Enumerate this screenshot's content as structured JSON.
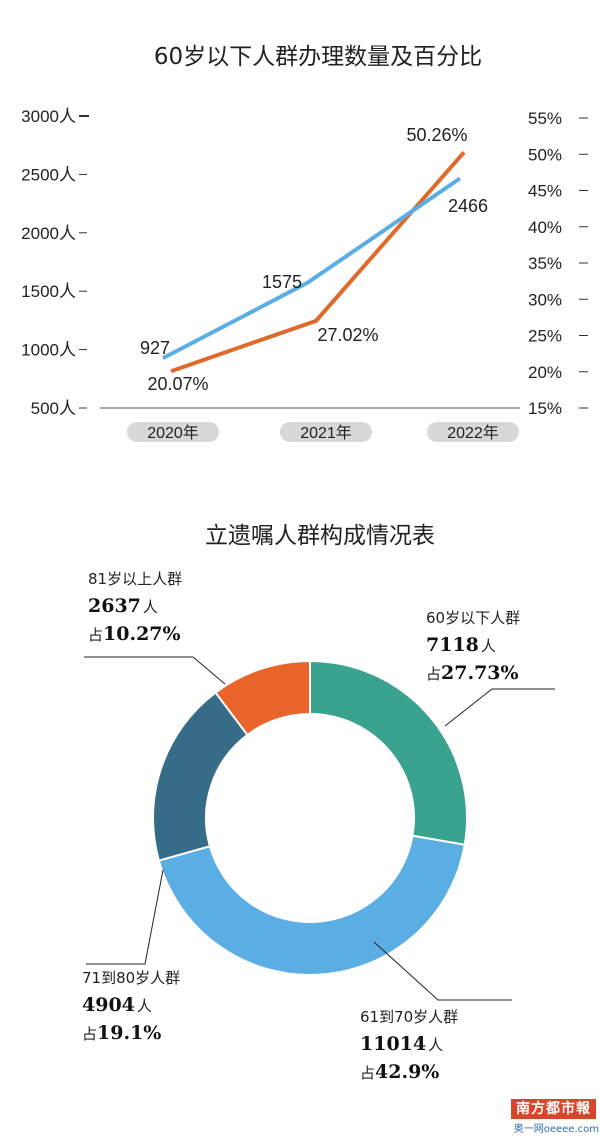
{
  "line_chart_title": "60岁以下人群办理数量及百分比",
  "pie_chart_title": "立遗嘱人群构成情况表",
  "chart_data": [
    {
      "type": "line",
      "title": "60岁以下人群办理数量及百分比",
      "categories": [
        "2020年",
        "2021年",
        "2022年"
      ],
      "y_left": {
        "ticks": [
          500,
          1000,
          1500,
          2000,
          2500,
          3000
        ],
        "tick_labels": [
          "500人",
          "1000人",
          "1500人",
          "2000人",
          "2500人",
          "3000人"
        ],
        "range": [
          500,
          3000
        ]
      },
      "y_right": {
        "ticks": [
          15,
          20,
          25,
          30,
          35,
          40,
          45,
          50,
          55
        ],
        "tick_labels": [
          "15%",
          "20%",
          "25%",
          "30%",
          "35%",
          "40%",
          "45%",
          "50%",
          "55%"
        ],
        "range": [
          15,
          55
        ]
      },
      "series": [
        {
          "axis": "left",
          "color": "#5aaee3",
          "values": [
            927,
            1575,
            2466
          ],
          "labels": [
            "927",
            "1575",
            "2466"
          ]
        },
        {
          "axis": "right",
          "color": "#e06a2c",
          "values": [
            20.07,
            27.02,
            50.26
          ],
          "labels": [
            "20.07%",
            "27.02%",
            "50.26%"
          ]
        }
      ],
      "grid": false
    },
    {
      "type": "pie",
      "title": "立遗嘱人群构成情况表",
      "style": "donut",
      "slices": [
        {
          "group": "60岁以下人群",
          "count": 7118,
          "count_text": "7118",
          "unit": "人",
          "percent": 27.73,
          "percent_text": "占27.73%",
          "color": "#3aa38f"
        },
        {
          "group": "61到70岁人群",
          "count": 11014,
          "count_text": "11014",
          "unit": "人",
          "percent": 42.9,
          "percent_text": "占42.9%",
          "color": "#5aaee3"
        },
        {
          "group": "71到80岁人群",
          "count": 4904,
          "count_text": "4904",
          "unit": "人",
          "percent": 19.1,
          "percent_text": "占19.1%",
          "color": "#376c88"
        },
        {
          "group": "81岁以上人群",
          "count": 2637,
          "count_text": "2637",
          "unit": "人",
          "percent": 10.27,
          "percent_text": "占10.27%",
          "color": "#e8642a"
        }
      ]
    }
  ],
  "watermark": {
    "logo_text": "南方都市報",
    "site_text": "奥一网oeeee.com"
  }
}
